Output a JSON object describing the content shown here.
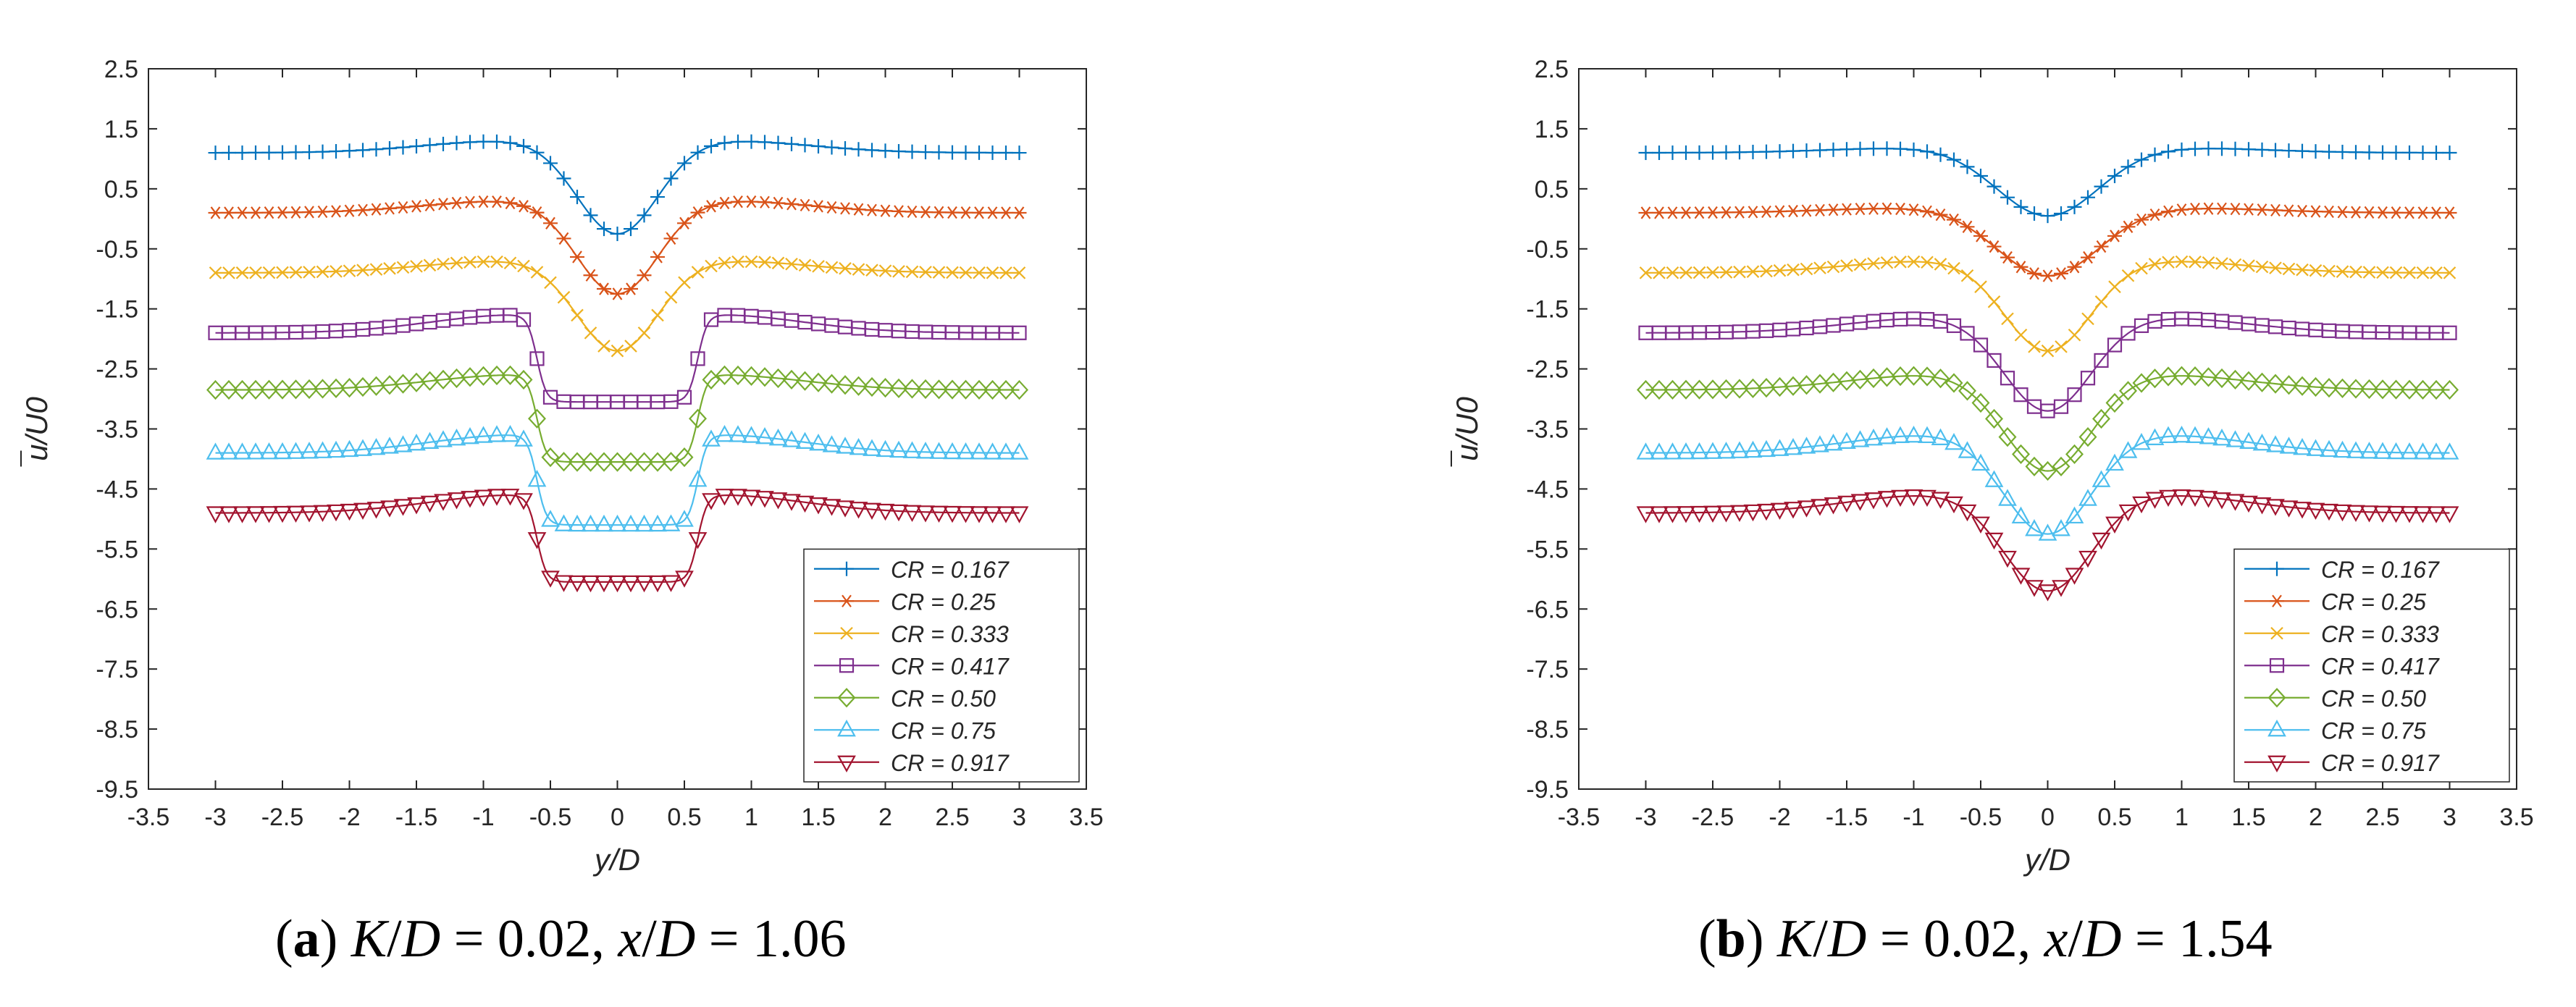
{
  "chart_data": [
    {
      "type": "line",
      "panel": "a",
      "caption": {
        "label": "a",
        "k_label": "K",
        "d_label": "D",
        "k_value": " = 0.02, ",
        "x_label": "x",
        "x_value": " = 1.06"
      },
      "xlabel": "y/D",
      "ylabel": "u/U0",
      "xlim": [
        -3.5,
        3.5
      ],
      "ylim": [
        -9.5,
        2.5
      ],
      "xticks": [
        "-3.5",
        "-3",
        "-2.5",
        "-2",
        "-1.5",
        "-1",
        "-0.5",
        "0",
        "0.5",
        "1",
        "1.5",
        "2",
        "2.5",
        "3",
        "3.5"
      ],
      "yticks": [
        "2.5",
        "1.5",
        "0.5",
        "-0.5",
        "-1.5",
        "-2.5",
        "-3.5",
        "-4.5",
        "-5.5",
        "-6.5",
        "-7.5",
        "-8.5",
        "-9.5"
      ],
      "legend_position": "bottom-right",
      "series": [
        {
          "name": "CR = 0.167",
          "cr": "0.167",
          "color": "#0072BD",
          "marker": "plus",
          "offset": 1.1,
          "side_bump": 0.2,
          "dip": -1.35,
          "shape": "rounded",
          "half_width": 0.75
        },
        {
          "name": "CR = 0.25",
          "cr": "0.25",
          "color": "#D95319",
          "marker": "star",
          "offset": 0.1,
          "side_bump": 0.2,
          "dip": -1.35,
          "shape": "rounded",
          "half_width": 0.75
        },
        {
          "name": "CR = 0.333",
          "cr": "0.333",
          "color": "#EDB120",
          "marker": "x",
          "offset": -0.9,
          "side_bump": 0.2,
          "dip": -1.3,
          "shape": "rounded",
          "half_width": 0.75
        },
        {
          "name": "CR = 0.417",
          "cr": "0.417",
          "color": "#7E2F8E",
          "marker": "square",
          "offset": -1.9,
          "side_bump": 0.3,
          "dip": -1.15,
          "shape": "flat",
          "half_width": 0.7
        },
        {
          "name": "CR = 0.50",
          "cr": "0.50",
          "color": "#77AC30",
          "marker": "diamond",
          "offset": -2.85,
          "side_bump": 0.25,
          "dip": -1.2,
          "shape": "flat",
          "half_width": 0.7
        },
        {
          "name": "CR = 0.75",
          "cr": "0.75",
          "color": "#4DBEEE",
          "marker": "triangle-up",
          "offset": -3.9,
          "side_bump": 0.3,
          "dip": -1.2,
          "shape": "flat",
          "half_width": 0.7
        },
        {
          "name": "CR = 0.917",
          "cr": "0.917",
          "color": "#A2142F",
          "marker": "triangle-down",
          "offset": -4.9,
          "side_bump": 0.3,
          "dip": -1.15,
          "shape": "flat",
          "half_width": 0.7
        }
      ]
    },
    {
      "type": "line",
      "panel": "b",
      "caption": {
        "label": "b",
        "k_label": "K",
        "d_label": "D",
        "k_value": " = 0.02, ",
        "x_label": "x",
        "x_value": " = 1.54"
      },
      "xlabel": "y/D",
      "ylabel": "u/U0",
      "xlim": [
        -3.5,
        3.5
      ],
      "ylim": [
        -9.5,
        2.5
      ],
      "xticks": [
        "-3.5",
        "-3",
        "-2.5",
        "-2",
        "-1.5",
        "-1",
        "-0.5",
        "0",
        "0.5",
        "1",
        "1.5",
        "2",
        "2.5",
        "3",
        "3.5"
      ],
      "yticks": [
        "2.5",
        "1.5",
        "0.5",
        "-0.5",
        "-1.5",
        "-2.5",
        "-3.5",
        "-4.5",
        "-5.5",
        "-6.5",
        "-7.5",
        "-8.5",
        "-9.5"
      ],
      "legend_position": "bottom-right",
      "series": [
        {
          "name": "CR = 0.167",
          "cr": "0.167",
          "color": "#0072BD",
          "marker": "plus",
          "offset": 1.1,
          "side_bump": 0.08,
          "dip": -1.05,
          "shape": "rounded",
          "half_width": 0.95
        },
        {
          "name": "CR = 0.25",
          "cr": "0.25",
          "color": "#D95319",
          "marker": "star",
          "offset": 0.1,
          "side_bump": 0.08,
          "dip": -1.05,
          "shape": "rounded",
          "half_width": 0.95
        },
        {
          "name": "CR = 0.333",
          "cr": "0.333",
          "color": "#EDB120",
          "marker": "x",
          "offset": -0.9,
          "side_bump": 0.2,
          "dip": -1.3,
          "shape": "rounded",
          "half_width": 0.8
        },
        {
          "name": "CR = 0.417",
          "cr": "0.417",
          "color": "#7E2F8E",
          "marker": "square",
          "offset": -1.9,
          "side_bump": 0.25,
          "dip": -1.3,
          "shape": "rounded",
          "half_width": 0.8
        },
        {
          "name": "CR = 0.50",
          "cr": "0.50",
          "color": "#77AC30",
          "marker": "diamond",
          "offset": -2.85,
          "side_bump": 0.25,
          "dip": -1.35,
          "shape": "rounded",
          "half_width": 0.8
        },
        {
          "name": "CR = 0.75",
          "cr": "0.75",
          "color": "#4DBEEE",
          "marker": "triangle-up",
          "offset": -3.9,
          "side_bump": 0.3,
          "dip": -1.35,
          "shape": "rounded",
          "half_width": 0.8
        },
        {
          "name": "CR = 0.917",
          "cr": "0.917",
          "color": "#A2142F",
          "marker": "triangle-down",
          "offset": -4.9,
          "side_bump": 0.3,
          "dip": -1.3,
          "shape": "rounded",
          "half_width": 0.8
        }
      ]
    }
  ]
}
